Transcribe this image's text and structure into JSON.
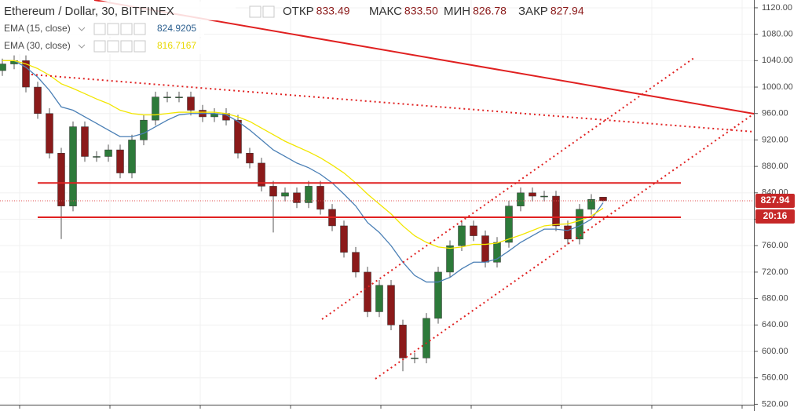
{
  "chart_data": {
    "type": "candlestick",
    "title": "Ethereum / Dollar, 30, BITFINEX",
    "ohlc_readout": [
      {
        "label": "ОТКР",
        "value": "833.49"
      },
      {
        "label": "МАКС",
        "value": "833.50"
      },
      {
        "label": "МИН",
        "value": "826.78"
      },
      {
        "label": "ЗАКР",
        "value": "827.94"
      }
    ],
    "series": [
      {
        "name": "ETHUSD",
        "up_color": "#2d7a3a",
        "down_color": "#8b1a1a",
        "open": [
          1025,
          1035,
          1040,
          1000,
          960,
          900,
          820,
          940,
          895,
          895,
          905,
          870,
          920,
          950,
          985,
          985,
          985,
          965,
          955,
          960,
          950,
          900,
          885,
          850,
          835,
          840,
          825,
          850,
          815,
          790,
          750,
          720,
          660,
          700,
          640,
          590,
          590,
          650,
          720,
          760,
          790,
          775,
          735,
          765,
          820,
          840,
          835,
          835,
          790,
          770,
          815,
          833.49
        ],
        "high": [
          1043,
          1048,
          1048,
          1008,
          968,
          908,
          948,
          948,
          903,
          913,
          913,
          928,
          958,
          993,
          993,
          993,
          993,
          973,
          968,
          968,
          958,
          908,
          893,
          858,
          848,
          848,
          858,
          858,
          823,
          798,
          758,
          728,
          708,
          708,
          648,
          598,
          658,
          728,
          768,
          798,
          798,
          783,
          773,
          828,
          848,
          848,
          843,
          843,
          798,
          823,
          838,
          833.5
        ],
        "low": [
          1017,
          1027,
          992,
          952,
          892,
          770,
          812,
          887,
          887,
          887,
          862,
          862,
          912,
          942,
          977,
          977,
          957,
          947,
          947,
          942,
          892,
          877,
          842,
          780,
          827,
          817,
          817,
          807,
          782,
          742,
          712,
          652,
          652,
          632,
          570,
          582,
          582,
          642,
          712,
          752,
          767,
          727,
          727,
          757,
          812,
          827,
          827,
          782,
          762,
          762,
          807,
          826.78
        ],
        "close": [
          1035,
          1040,
          1000,
          960,
          900,
          820,
          940,
          895,
          895,
          905,
          870,
          920,
          950,
          985,
          985,
          985,
          965,
          955,
          960,
          950,
          900,
          885,
          850,
          835,
          840,
          825,
          850,
          815,
          790,
          750,
          720,
          660,
          700,
          640,
          590,
          590,
          650,
          720,
          760,
          790,
          775,
          735,
          765,
          820,
          840,
          835,
          835,
          790,
          770,
          815,
          830,
          827.94
        ]
      },
      {
        "name": "EMA (15, close)",
        "color": "#4a7fb5",
        "values": [
          1040,
          1040,
          1030,
          1015,
          995,
          970,
          965,
          955,
          945,
          935,
          925,
          925,
          930,
          940,
          950,
          958,
          960,
          960,
          960,
          958,
          948,
          935,
          920,
          905,
          895,
          885,
          878,
          868,
          855,
          838,
          820,
          795,
          780,
          760,
          735,
          715,
          705,
          705,
          712,
          725,
          735,
          735,
          740,
          752,
          765,
          775,
          785,
          785,
          783,
          790,
          800,
          824.9205
        ]
      },
      {
        "name": "EMA (30, close)",
        "color": "#f2e600",
        "values": [
          1040,
          1040,
          1035,
          1028,
          1018,
          1005,
          998,
          990,
          982,
          975,
          965,
          960,
          958,
          958,
          960,
          962,
          962,
          962,
          962,
          960,
          955,
          948,
          938,
          928,
          918,
          910,
          902,
          893,
          882,
          870,
          855,
          838,
          823,
          808,
          790,
          775,
          765,
          758,
          756,
          758,
          762,
          762,
          764,
          770,
          776,
          783,
          790,
          792,
          793,
          798,
          805,
          816.7167
        ]
      }
    ],
    "levels": [
      855,
      803
    ],
    "level_color": "#e02020",
    "countdown": "20:16",
    "ylim": [
      519.3,
      1131.8
    ],
    "yticks": [
      {
        "value": 520,
        "label": "520.00"
      },
      {
        "value": 560,
        "label": "560.00"
      },
      {
        "value": 600,
        "label": "600.00"
      },
      {
        "value": 640,
        "label": "640.00"
      },
      {
        "value": 680,
        "label": "680.00"
      },
      {
        "value": 720,
        "label": "720.00"
      },
      {
        "value": 760,
        "label": "760.00"
      },
      {
        "value": 800,
        "label": "800.00"
      },
      {
        "value": 840,
        "label": "840.00"
      },
      {
        "value": 880,
        "label": "880.00"
      },
      {
        "value": 920,
        "label": "920.00"
      },
      {
        "value": 960,
        "label": "960.00"
      },
      {
        "value": 1000,
        "label": "1000.00"
      },
      {
        "value": 1040,
        "label": "1040.00"
      },
      {
        "value": 1080,
        "label": "1080.00"
      },
      {
        "value": 1120,
        "label": "1120.00"
      }
    ],
    "grid": true
  }
}
